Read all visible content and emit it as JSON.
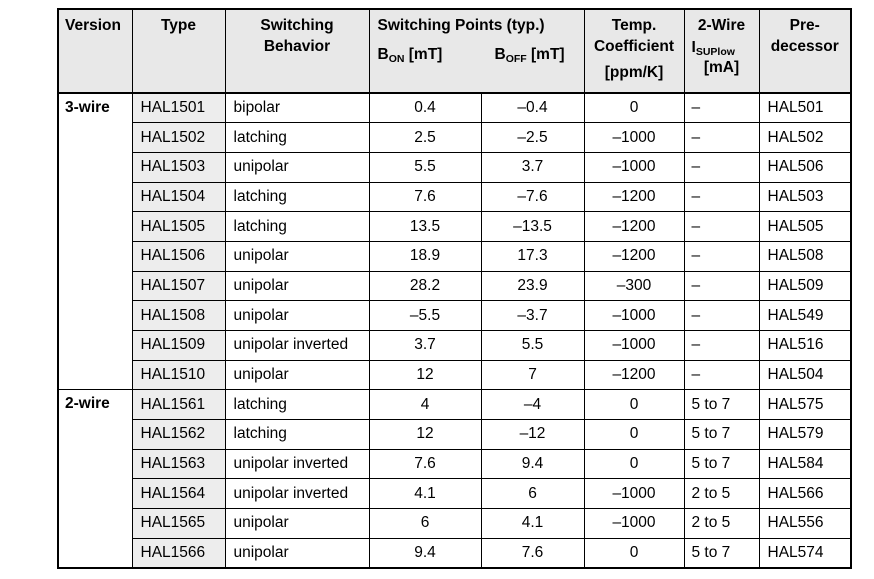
{
  "colors": {
    "header_bg": "#e8e8e8",
    "type_cell_bg": "#ededed",
    "border": "#000000"
  },
  "header": {
    "version": "Version",
    "type": "Type",
    "behavior": "Switching\nBehavior",
    "points_title": "Switching Points (typ.)",
    "bon_base": "B",
    "bon_sub": "ON",
    "bon_unit": " [mT]",
    "boff_base": "B",
    "boff_sub": "OFF",
    "boff_unit": " [mT]",
    "temp": "Temp.\nCoefficient",
    "temp_unit": "[ppm/K]",
    "wire_line1": "2-Wire",
    "wire_base": "I",
    "wire_sub": "SUPlow",
    "wire_unit": "[mA]",
    "predecessor": "Pre-\ndecessor"
  },
  "groups": [
    {
      "version": "3-wire",
      "rows": [
        {
          "type": "HAL1501",
          "behavior": "bipolar",
          "bon": "0.4",
          "boff": "–0.4",
          "temp": "0",
          "two_wire": "–",
          "predecessor": "HAL501"
        },
        {
          "type": "HAL1502",
          "behavior": "latching",
          "bon": "2.5",
          "boff": "–2.5",
          "temp": "–1000",
          "two_wire": "–",
          "predecessor": "HAL502"
        },
        {
          "type": "HAL1503",
          "behavior": "unipolar",
          "bon": "5.5",
          "boff": "3.7",
          "temp": "–1000",
          "two_wire": "–",
          "predecessor": "HAL506"
        },
        {
          "type": "HAL1504",
          "behavior": "latching",
          "bon": "7.6",
          "boff": "–7.6",
          "temp": "–1200",
          "two_wire": "–",
          "predecessor": "HAL503"
        },
        {
          "type": "HAL1505",
          "behavior": "latching",
          "bon": "13.5",
          "boff": "–13.5",
          "temp": "–1200",
          "two_wire": "–",
          "predecessor": "HAL505"
        },
        {
          "type": "HAL1506",
          "behavior": "unipolar",
          "bon": "18.9",
          "boff": "17.3",
          "temp": "–1200",
          "two_wire": "–",
          "predecessor": "HAL508"
        },
        {
          "type": "HAL1507",
          "behavior": "unipolar",
          "bon": "28.2",
          "boff": "23.9",
          "temp": "–300",
          "two_wire": "–",
          "predecessor": "HAL509"
        },
        {
          "type": "HAL1508",
          "behavior": "unipolar",
          "bon": "–5.5",
          "boff": "–3.7",
          "temp": "–1000",
          "two_wire": "–",
          "predecessor": "HAL549"
        },
        {
          "type": "HAL1509",
          "behavior": "unipolar inverted",
          "bon": "3.7",
          "boff": "5.5",
          "temp": "–1000",
          "two_wire": "–",
          "predecessor": "HAL516"
        },
        {
          "type": "HAL1510",
          "behavior": "unipolar",
          "bon": "12",
          "boff": "7",
          "temp": "–1200",
          "two_wire": "–",
          "predecessor": "HAL504"
        }
      ]
    },
    {
      "version": "2-wire",
      "rows": [
        {
          "type": "HAL1561",
          "behavior": "latching",
          "bon": "4",
          "boff": "–4",
          "temp": "0",
          "two_wire": "5 to 7",
          "predecessor": "HAL575"
        },
        {
          "type": "HAL1562",
          "behavior": "latching",
          "bon": "12",
          "boff": "–12",
          "temp": "0",
          "two_wire": "5 to 7",
          "predecessor": "HAL579"
        },
        {
          "type": "HAL1563",
          "behavior": "unipolar inverted",
          "bon": "7.6",
          "boff": "9.4",
          "temp": "0",
          "two_wire": "5 to 7",
          "predecessor": "HAL584"
        },
        {
          "type": "HAL1564",
          "behavior": "unipolar inverted",
          "bon": "4.1",
          "boff": "6",
          "temp": "–1000",
          "two_wire": "2 to 5",
          "predecessor": "HAL566"
        },
        {
          "type": "HAL1565",
          "behavior": "unipolar",
          "bon": "6",
          "boff": "4.1",
          "temp": "–1000",
          "two_wire": "2 to 5",
          "predecessor": "HAL556"
        },
        {
          "type": "HAL1566",
          "behavior": "unipolar",
          "bon": "9.4",
          "boff": "7.6",
          "temp": "0",
          "two_wire": "5 to 7",
          "predecessor": "HAL574"
        }
      ]
    }
  ]
}
